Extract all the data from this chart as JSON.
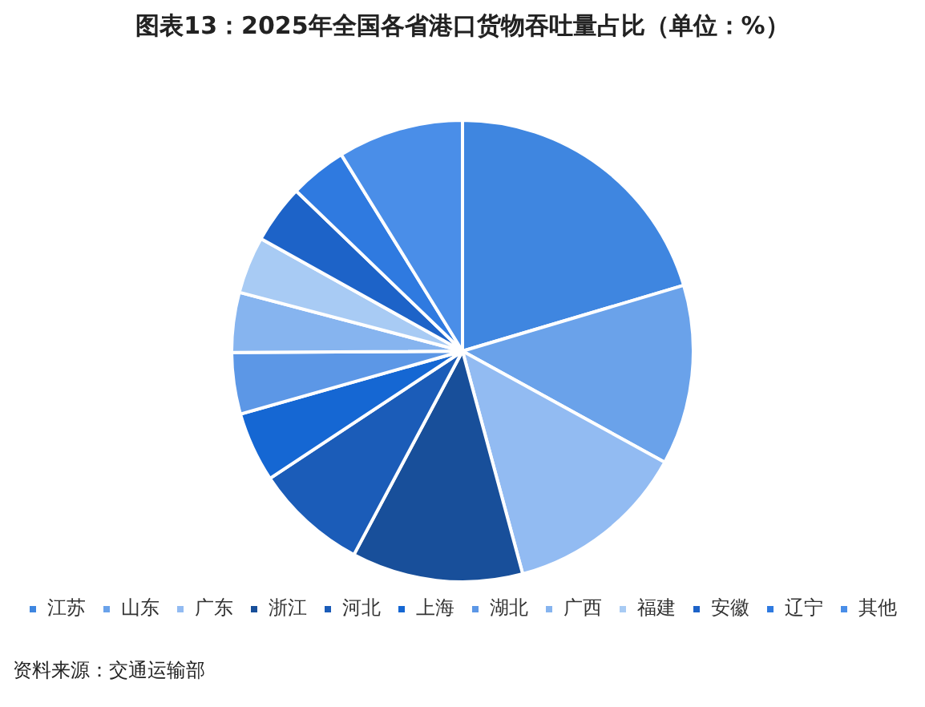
{
  "chart_data": {
    "type": "pie",
    "title": "图表13：2025年全国各省港口货物吞吐量占比（单位：%）",
    "categories": [
      "江苏",
      "山东",
      "广东",
      "浙江",
      "河北",
      "上海",
      "湖北",
      "广西",
      "福建",
      "安徽",
      "辽宁",
      "其他"
    ],
    "values": [
      20.4,
      12.6,
      12.8,
      12.0,
      7.9,
      4.9,
      4.3,
      4.2,
      4.0,
      4.1,
      4.0,
      8.8
    ],
    "colors": [
      "#3f86e0",
      "#6aa2ea",
      "#92bbf2",
      "#184f9a",
      "#1b5cb8",
      "#1567d3",
      "#5c97e6",
      "#86b4ef",
      "#a8cbf4",
      "#1d63c8",
      "#2f7ae0",
      "#4a8ee8"
    ],
    "legend": "bottom",
    "annotations": [
      "资料来源：交通运输部"
    ]
  }
}
